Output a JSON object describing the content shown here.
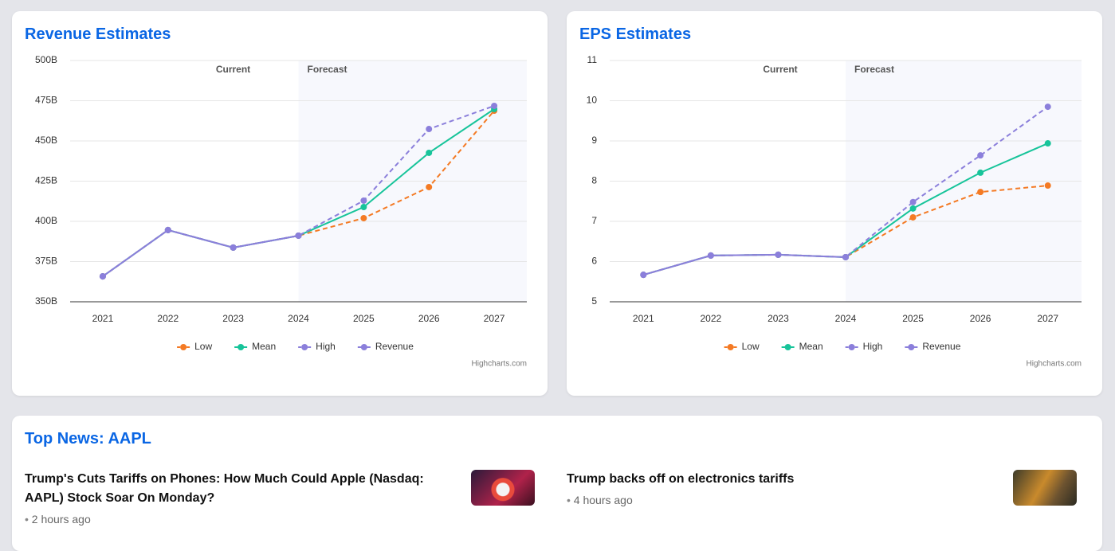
{
  "chart_data": [
    {
      "type": "line",
      "title": "Revenue Estimates",
      "current_label": "Current",
      "forecast_label": "Forecast",
      "band_start": "2024",
      "credits": "Highcharts.com",
      "categories": [
        "2021",
        "2022",
        "2023",
        "2024",
        "2025",
        "2026",
        "2027"
      ],
      "series": [
        {
          "name": "Low",
          "color": "#f47a24",
          "dash": true,
          "values": [
            365.8,
            394.6,
            383.7,
            391.1,
            402,
            421.3,
            468.8
          ]
        },
        {
          "name": "Mean",
          "color": "#17c49a",
          "dash": false,
          "values": [
            365.8,
            394.6,
            383.7,
            391.1,
            408.9,
            442.6,
            469.8
          ]
        },
        {
          "name": "High",
          "color": "#8b7fdb",
          "dash": true,
          "values": [
            365.8,
            394.6,
            383.7,
            391.1,
            412.9,
            457.4,
            471.8
          ]
        },
        {
          "name": "Revenue",
          "color": "#8b7fdb",
          "dash": false,
          "values": [
            365.8,
            394.6,
            383.7,
            391.1,
            null,
            null,
            null
          ]
        }
      ],
      "ylim": [
        350,
        500
      ],
      "yticks": [
        {
          "value": 350,
          "label": "350B"
        },
        {
          "value": 375,
          "label": "375B"
        },
        {
          "value": 400,
          "label": "400B"
        },
        {
          "value": 425,
          "label": "425B"
        },
        {
          "value": 450,
          "label": "450B"
        },
        {
          "value": 475,
          "label": "475B"
        },
        {
          "value": 500,
          "label": "500B"
        }
      ],
      "grid": true
    },
    {
      "type": "line",
      "title": "EPS Estimates",
      "current_label": "Current",
      "forecast_label": "Forecast",
      "band_start": "2024",
      "credits": "Highcharts.com",
      "categories": [
        "2021",
        "2022",
        "2023",
        "2024",
        "2025",
        "2026",
        "2027"
      ],
      "series": [
        {
          "name": "Low",
          "color": "#f47a24",
          "dash": true,
          "values": [
            5.67,
            6.15,
            6.17,
            6.11,
            7.1,
            7.73,
            7.89
          ]
        },
        {
          "name": "Mean",
          "color": "#17c49a",
          "dash": false,
          "values": [
            5.67,
            6.15,
            6.17,
            6.11,
            7.32,
            8.21,
            8.94
          ]
        },
        {
          "name": "High",
          "color": "#8b7fdb",
          "dash": true,
          "values": [
            5.67,
            6.15,
            6.17,
            6.11,
            7.48,
            8.64,
            9.85
          ]
        },
        {
          "name": "Revenue",
          "color": "#8b7fdb",
          "dash": false,
          "values": [
            5.67,
            6.15,
            6.17,
            6.11,
            null,
            null,
            null
          ]
        }
      ],
      "ylim": [
        5,
        11
      ],
      "yticks": [
        5,
        6,
        7,
        8,
        9,
        10,
        11
      ],
      "grid": true
    }
  ],
  "news": {
    "title": "Top News: AAPL",
    "items": [
      {
        "title": "Trump's Cuts Tariffs on Phones: How Much Could Apple (Nasdaq: AAPL) Stock Soar On Monday?",
        "time": "2 hours ago"
      },
      {
        "title": "Trump backs off on electronics tariffs",
        "time": "4 hours ago"
      }
    ]
  }
}
